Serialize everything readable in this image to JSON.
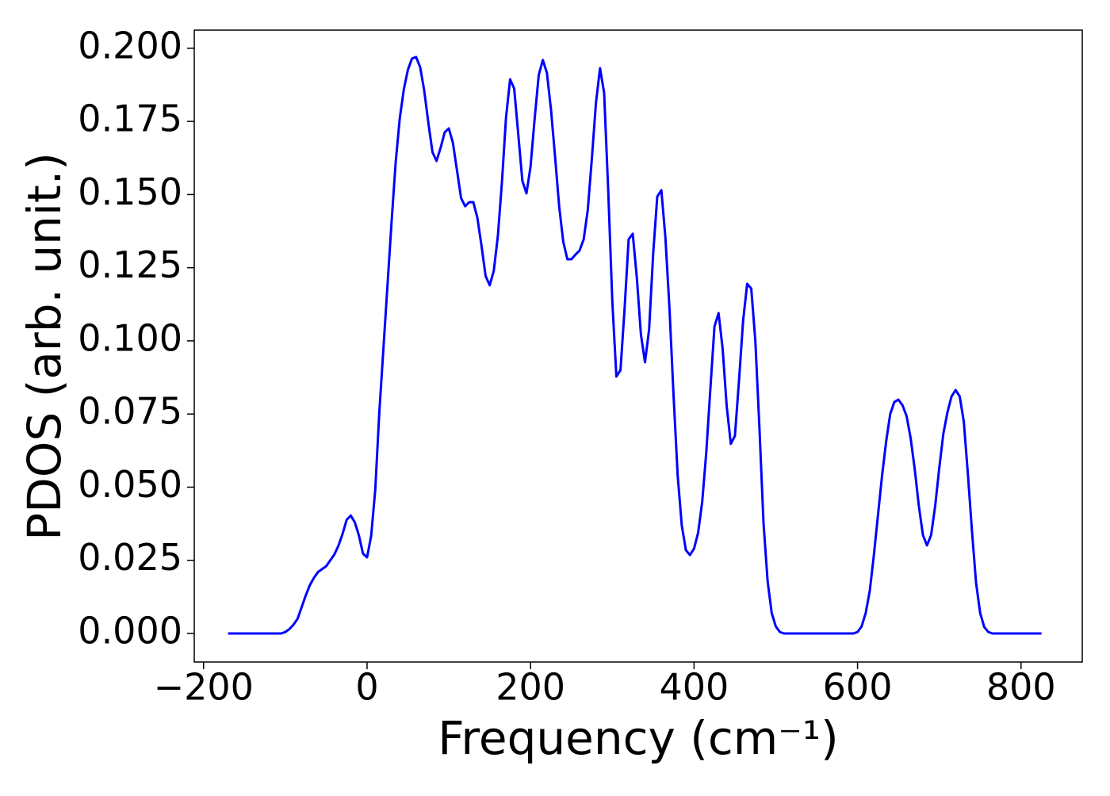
{
  "chart_data": {
    "type": "line",
    "x_label": "Frequency (cm⁻¹)",
    "y_label": "PDOS (arb. unit.)",
    "xlim": [
      -211.4,
      874.9
    ],
    "ylim": [
      -0.00976,
      0.2062
    ],
    "xticks": [
      {
        "value": -200,
        "label": "−200"
      },
      0,
      200,
      400,
      600,
      800
    ],
    "yticks": [
      {
        "value": 0,
        "label": "0.000"
      },
      {
        "value": 0.025,
        "label": "0.025"
      },
      {
        "value": 0.05,
        "label": "0.050"
      },
      {
        "value": 0.075,
        "label": "0.075"
      },
      {
        "value": 0.1,
        "label": "0.100"
      },
      {
        "value": 0.125,
        "label": "0.125"
      },
      {
        "value": 0.15,
        "label": "0.150"
      },
      {
        "value": 0.175,
        "label": "0.175"
      },
      {
        "value": 0.2,
        "label": "0.200"
      }
    ],
    "x": [
      -170,
      -165,
      -160,
      -155,
      -150,
      -145,
      -140,
      -135,
      -130,
      -125,
      -120,
      -115,
      -110,
      -105,
      -100,
      -95,
      -90,
      -85,
      -80,
      -75,
      -70,
      -65,
      -60,
      -55,
      -50,
      -45,
      -40,
      -35,
      -30,
      -25,
      -20,
      -15,
      -10,
      -5,
      0,
      5,
      10,
      15,
      20,
      25,
      30,
      35,
      40,
      45,
      50,
      55,
      60,
      65,
      70,
      75,
      80,
      85,
      90,
      95,
      100,
      105,
      110,
      115,
      120,
      125,
      130,
      135,
      140,
      145,
      150,
      155,
      160,
      165,
      170,
      175,
      180,
      185,
      190,
      195,
      200,
      205,
      210,
      215,
      220,
      225,
      230,
      235,
      240,
      245,
      250,
      255,
      260,
      265,
      270,
      275,
      280,
      285,
      290,
      295,
      300,
      305,
      310,
      315,
      320,
      325,
      330,
      335,
      340,
      345,
      350,
      355,
      360,
      365,
      370,
      375,
      380,
      385,
      390,
      395,
      400,
      405,
      410,
      415,
      420,
      425,
      430,
      435,
      440,
      445,
      450,
      455,
      460,
      465,
      470,
      475,
      480,
      485,
      490,
      495,
      500,
      505,
      510,
      515,
      520,
      525,
      530,
      535,
      540,
      545,
      550,
      555,
      560,
      565,
      570,
      575,
      580,
      585,
      590,
      595,
      600,
      605,
      610,
      615,
      620,
      625,
      630,
      635,
      640,
      645,
      650,
      655,
      660,
      665,
      670,
      675,
      680,
      685,
      690,
      695,
      700,
      705,
      710,
      715,
      720,
      725,
      730,
      735,
      740,
      745,
      750,
      755,
      760,
      765,
      770,
      775,
      780,
      785,
      790,
      795,
      800,
      805,
      810,
      815,
      820,
      825
    ],
    "series": [
      {
        "color": "#0000ff",
        "values": [
          0,
          0,
          0,
          0,
          0,
          0,
          0,
          0,
          0,
          0,
          0,
          0,
          0,
          0,
          0.0005,
          0.0015,
          0.003,
          0.005,
          0.009,
          0.013,
          0.0165,
          0.019,
          0.021,
          0.022,
          0.023,
          0.025,
          0.027,
          0.03,
          0.034,
          0.0388,
          0.0403,
          0.038,
          0.0335,
          0.0273,
          0.026,
          0.0333,
          0.049,
          0.0756,
          0.0973,
          0.119,
          0.1407,
          0.161,
          0.176,
          0.186,
          0.1927,
          0.1965,
          0.197,
          0.1935,
          0.1854,
          0.1745,
          0.1645,
          0.1615,
          0.166,
          0.1713,
          0.1726,
          0.1677,
          0.1583,
          0.1488,
          0.146,
          0.1474,
          0.1474,
          0.142,
          0.1325,
          0.1222,
          0.119,
          0.1239,
          0.1358,
          0.1542,
          0.1764,
          0.1894,
          0.1862,
          0.1705,
          0.1547,
          0.1504,
          0.1596,
          0.1759,
          0.1908,
          0.196,
          0.1916,
          0.1791,
          0.1629,
          0.146,
          0.1339,
          0.1279,
          0.1279,
          0.1295,
          0.1309,
          0.1347,
          0.1447,
          0.1623,
          0.1813,
          0.1932,
          0.1848,
          0.1515,
          0.1136,
          0.0878,
          0.09,
          0.1108,
          0.1347,
          0.1366,
          0.1217,
          0.1022,
          0.0927,
          0.1038,
          0.1298,
          0.1493,
          0.1515,
          0.1352,
          0.1108,
          0.081,
          0.0539,
          0.0369,
          0.0285,
          0.0268,
          0.029,
          0.0344,
          0.045,
          0.062,
          0.0837,
          0.1049,
          0.1095,
          0.0973,
          0.0775,
          0.0648,
          0.0675,
          0.0864,
          0.1068,
          0.1195,
          0.1179,
          0.1,
          0.0702,
          0.0377,
          0.0179,
          0.007,
          0.0024,
          0.0005,
          0,
          0,
          0,
          0,
          0,
          0,
          0,
          0,
          0,
          0,
          0,
          0,
          0,
          0,
          0,
          0,
          0,
          0,
          0.0005,
          0.0024,
          0.007,
          0.0146,
          0.0268,
          0.0404,
          0.0539,
          0.0656,
          0.075,
          0.0791,
          0.0799,
          0.078,
          0.0743,
          0.0667,
          0.0561,
          0.0436,
          0.0336,
          0.0301,
          0.0336,
          0.0436,
          0.0566,
          0.0683,
          0.0756,
          0.081,
          0.0832,
          0.081,
          0.0724,
          0.0545,
          0.035,
          0.0173,
          0.007,
          0.0022,
          0.0005,
          0,
          0,
          0,
          0,
          0,
          0,
          0,
          0,
          0,
          0,
          0,
          0,
          0
        ]
      }
    ]
  }
}
